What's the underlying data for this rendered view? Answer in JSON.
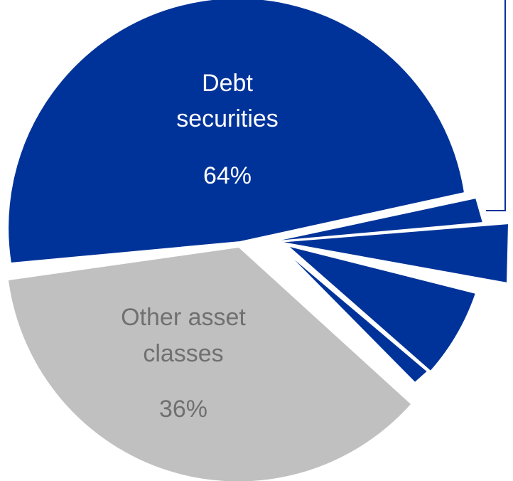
{
  "chart_data": {
    "type": "pie",
    "title": "",
    "slices": [
      {
        "name": "Debt securities",
        "label_lines": [
          "Debt",
          "securities"
        ],
        "value_label": "64%",
        "value": 64,
        "color": "#003399",
        "text_color": "#ffffff",
        "exploded": false
      },
      {
        "name": "Other asset classes",
        "label_lines": [
          "Other asset",
          "classes"
        ],
        "value_label": "36%",
        "value": 36,
        "color": "#c0c0c0",
        "text_color": "#707070",
        "exploded": true
      }
    ],
    "debt_breakdown": {
      "note": "Debt securities slice is subdivided into unlabeled wedges; two wedges are pulled out.",
      "color": "#003399",
      "divider_color": "#ffffff",
      "frame_color": "#003399"
    }
  }
}
